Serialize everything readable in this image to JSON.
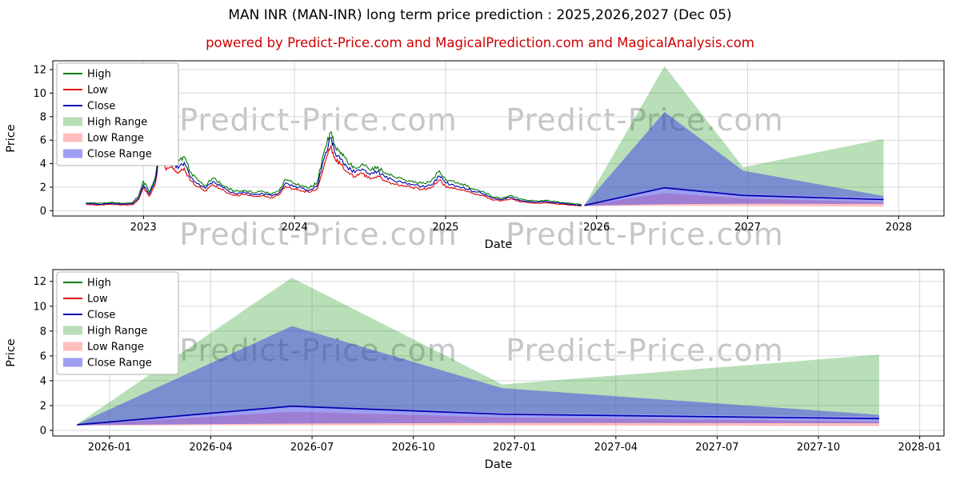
{
  "title": "MAN INR (MAN-INR) long term price prediction : 2025,2026,2027 (Dec 05)",
  "subtitle": "powered by Predict-Price.com and MagicalPrediction.com and MagicalAnalysis.com",
  "watermark": "Predict-Price.com",
  "colors": {
    "high_line": "#007a00",
    "low_line": "#e00000",
    "close_line": "#0000b0",
    "high_range_fill": "rgba(0,140,0,0.28)",
    "low_range_fill": "rgba(255,70,70,0.35)",
    "close_range_fill": "rgba(62,62,230,0.5)",
    "subtitle_color": "#cc0000",
    "grid": "#d8d8d8"
  },
  "chart_data": [
    {
      "type": "line",
      "name": "overview-history-and-prediction",
      "xlabel": "Date",
      "ylabel": "Price",
      "xlim": [
        2022.4,
        2028.3
      ],
      "ylim": [
        -0.45,
        12.75
      ],
      "grid": true,
      "legend_position": "upper-left",
      "xticks": [
        {
          "v": 2023,
          "label": "2023"
        },
        {
          "v": 2024,
          "label": "2024"
        },
        {
          "v": 2025,
          "label": "2025"
        },
        {
          "v": 2026,
          "label": "2026"
        },
        {
          "v": 2027,
          "label": "2027"
        },
        {
          "v": 2028,
          "label": "2028"
        }
      ],
      "yticks": [
        {
          "v": 0,
          "label": "0"
        },
        {
          "v": 2,
          "label": "2"
        },
        {
          "v": 4,
          "label": "4"
        },
        {
          "v": 6,
          "label": "6"
        },
        {
          "v": 8,
          "label": "8"
        },
        {
          "v": 10,
          "label": "10"
        },
        {
          "v": 12,
          "label": "12"
        }
      ],
      "bands": [
        {
          "name": "high-range-band",
          "label": "High Range",
          "color": "rgba(0,140,0,0.28)",
          "x": [
            2025.92,
            2026.45,
            2026.97,
            2027.9
          ],
          "top": [
            0.5,
            12.3,
            3.7,
            6.1
          ],
          "bottom": [
            0.45,
            2.0,
            1.4,
            1.1
          ]
        },
        {
          "name": "low-range-band",
          "label": "Low Range",
          "color": "rgba(255,70,70,0.35)",
          "x": [
            2025.92,
            2026.45,
            2026.97,
            2027.9
          ],
          "top": [
            0.45,
            1.5,
            1.05,
            0.72
          ],
          "bottom": [
            0.4,
            0.42,
            0.4,
            0.35
          ]
        },
        {
          "name": "close-range-band",
          "label": "Close Range",
          "color": "rgba(62,62,230,0.5)",
          "x": [
            2025.92,
            2026.45,
            2026.97,
            2027.9
          ],
          "top": [
            0.5,
            8.4,
            3.4,
            1.25
          ],
          "bottom": [
            0.42,
            0.55,
            0.6,
            0.58
          ]
        }
      ],
      "lines": [
        {
          "name": "high-line",
          "label": "High",
          "color": "#007a00",
          "w": 1.1,
          "jitter": 0.045,
          "seed": 1,
          "x": [
            2022.62,
            2022.7,
            2022.78,
            2022.86,
            2022.93,
            2022.97,
            2023.0,
            2023.04,
            2023.08,
            2023.11,
            2023.15,
            2023.19,
            2023.23,
            2023.27,
            2023.31,
            2023.36,
            2023.41,
            2023.46,
            2023.51,
            2023.56,
            2023.61,
            2023.67,
            2023.73,
            2023.79,
            2023.85,
            2023.9,
            2023.94,
            2024.0,
            2024.05,
            2024.1,
            2024.15,
            2024.2,
            2024.24,
            2024.27,
            2024.31,
            2024.35,
            2024.4,
            2024.45,
            2024.5,
            2024.55,
            2024.6,
            2024.66,
            2024.72,
            2024.78,
            2024.84,
            2024.9,
            2024.96,
            2025.0,
            2025.04,
            2025.09,
            2025.14,
            2025.19,
            2025.25,
            2025.31,
            2025.37,
            2025.43,
            2025.49,
            2025.55,
            2025.61,
            2025.67,
            2025.73,
            2025.79,
            2025.85,
            2025.9
          ],
          "y": [
            0.68,
            0.62,
            0.7,
            0.62,
            0.68,
            1.35,
            2.5,
            1.6,
            2.95,
            6.1,
            4.4,
            4.8,
            4.05,
            4.6,
            3.3,
            2.6,
            2.15,
            2.8,
            2.35,
            1.92,
            1.64,
            1.75,
            1.53,
            1.64,
            1.41,
            1.75,
            2.65,
            2.32,
            2.15,
            1.98,
            2.4,
            5.2,
            6.7,
            5.5,
            4.95,
            4.15,
            3.65,
            4.0,
            3.45,
            3.75,
            3.2,
            2.88,
            2.65,
            2.54,
            2.32,
            2.43,
            3.4,
            2.65,
            2.54,
            2.32,
            2.09,
            1.86,
            1.64,
            1.19,
            1.07,
            1.3,
            0.99,
            0.88,
            0.81,
            0.88,
            0.75,
            0.68,
            0.59,
            0.51
          ]
        },
        {
          "name": "low-line",
          "label": "Low",
          "color": "#e00000",
          "w": 1.1,
          "jitter": 0.045,
          "seed": 2,
          "x": [
            2022.62,
            2022.7,
            2022.78,
            2022.86,
            2022.93,
            2022.97,
            2023.0,
            2023.04,
            2023.08,
            2023.11,
            2023.15,
            2023.19,
            2023.23,
            2023.27,
            2023.31,
            2023.36,
            2023.41,
            2023.46,
            2023.51,
            2023.56,
            2023.61,
            2023.67,
            2023.73,
            2023.79,
            2023.85,
            2023.9,
            2023.94,
            2024.0,
            2024.05,
            2024.1,
            2024.15,
            2024.2,
            2024.24,
            2024.27,
            2024.31,
            2024.35,
            2024.4,
            2024.45,
            2024.5,
            2024.55,
            2024.6,
            2024.66,
            2024.72,
            2024.78,
            2024.84,
            2024.9,
            2024.96,
            2025.0,
            2025.04,
            2025.09,
            2025.14,
            2025.19,
            2025.25,
            2025.31,
            2025.37,
            2025.43,
            2025.49,
            2025.55,
            2025.61,
            2025.67,
            2025.73,
            2025.79,
            2025.85,
            2025.9
          ],
          "y": [
            0.53,
            0.49,
            0.55,
            0.49,
            0.53,
            0.97,
            1.95,
            1.24,
            2.3,
            4.95,
            3.45,
            3.8,
            3.18,
            3.63,
            2.57,
            2.04,
            1.68,
            2.21,
            1.86,
            1.5,
            1.28,
            1.37,
            1.2,
            1.28,
            1.11,
            1.37,
            2.08,
            1.82,
            1.68,
            1.55,
            1.86,
            4.05,
            5.5,
            4.34,
            3.9,
            3.28,
            2.88,
            3.14,
            2.7,
            2.97,
            2.52,
            2.26,
            2.08,
            1.99,
            1.82,
            1.9,
            2.61,
            2.08,
            1.99,
            1.82,
            1.64,
            1.46,
            1.28,
            0.93,
            0.84,
            1.02,
            0.78,
            0.69,
            0.64,
            0.69,
            0.58,
            0.53,
            0.46,
            0.4
          ]
        },
        {
          "name": "close-line",
          "label": "Close",
          "color": "#0000b0",
          "w": 1.1,
          "jitter": 0.045,
          "seed": 3,
          "x": [
            2022.62,
            2022.7,
            2022.78,
            2022.86,
            2022.93,
            2022.97,
            2023.0,
            2023.04,
            2023.08,
            2023.11,
            2023.15,
            2023.19,
            2023.23,
            2023.27,
            2023.31,
            2023.36,
            2023.41,
            2023.46,
            2023.51,
            2023.56,
            2023.61,
            2023.67,
            2023.73,
            2023.79,
            2023.85,
            2023.9,
            2023.94,
            2024.0,
            2024.05,
            2024.1,
            2024.15,
            2024.2,
            2024.24,
            2024.27,
            2024.31,
            2024.35,
            2024.4,
            2024.45,
            2024.5,
            2024.55,
            2024.6,
            2024.66,
            2024.72,
            2024.78,
            2024.84,
            2024.9,
            2024.96,
            2025.0,
            2025.04,
            2025.09,
            2025.14,
            2025.19,
            2025.25,
            2025.31,
            2025.37,
            2025.43,
            2025.49,
            2025.55,
            2025.61,
            2025.67,
            2025.73,
            2025.79,
            2025.85,
            2025.9
          ],
          "y": [
            0.6,
            0.55,
            0.62,
            0.55,
            0.6,
            1.1,
            2.2,
            1.4,
            2.6,
            5.6,
            3.9,
            4.3,
            3.6,
            4.1,
            2.9,
            2.3,
            1.9,
            2.5,
            2.1,
            1.7,
            1.45,
            1.55,
            1.35,
            1.45,
            1.25,
            1.55,
            2.35,
            2.05,
            1.9,
            1.75,
            2.1,
            4.6,
            6.2,
            4.9,
            4.4,
            3.7,
            3.25,
            3.55,
            3.05,
            3.35,
            2.85,
            2.55,
            2.35,
            2.25,
            2.05,
            2.15,
            2.95,
            2.35,
            2.25,
            2.05,
            1.85,
            1.65,
            1.45,
            1.05,
            0.95,
            1.15,
            0.88,
            0.78,
            0.72,
            0.78,
            0.66,
            0.6,
            0.52,
            0.45
          ]
        },
        {
          "name": "close-prediction-line",
          "label": "Close",
          "color": "#0000b0",
          "w": 1.7,
          "jitter": 0,
          "seed": 0,
          "x": [
            2025.92,
            2026.45,
            2026.97,
            2027.9
          ],
          "y": [
            0.45,
            1.95,
            1.3,
            0.95
          ]
        }
      ],
      "legend": [
        {
          "label": "High",
          "type": "line",
          "color": "#007a00"
        },
        {
          "label": "Low",
          "type": "line",
          "color": "#e00000"
        },
        {
          "label": "Close",
          "type": "line",
          "color": "#0000b0"
        },
        {
          "label": "High Range",
          "type": "patch",
          "color": "rgba(0,140,0,0.28)"
        },
        {
          "label": "Low Range",
          "type": "patch",
          "color": "rgba(255,70,70,0.35)"
        },
        {
          "label": "Close Range",
          "type": "patch",
          "color": "rgba(62,62,230,0.5)"
        }
      ]
    },
    {
      "type": "line",
      "name": "prediction-detail",
      "xlabel": "Date",
      "ylabel": "Price",
      "xlim": [
        2025.86,
        2028.06
      ],
      "ylim": [
        -0.45,
        12.95
      ],
      "grid": true,
      "legend_position": "upper-left",
      "xticks": [
        {
          "v": 2026.0,
          "label": "2026-01"
        },
        {
          "v": 2026.25,
          "label": "2026-04"
        },
        {
          "v": 2026.5,
          "label": "2026-07"
        },
        {
          "v": 2026.75,
          "label": "2026-10"
        },
        {
          "v": 2027.0,
          "label": "2027-01"
        },
        {
          "v": 2027.25,
          "label": "2027-04"
        },
        {
          "v": 2027.5,
          "label": "2027-07"
        },
        {
          "v": 2027.75,
          "label": "2027-10"
        },
        {
          "v": 2028.0,
          "label": "2028-01"
        }
      ],
      "yticks": [
        {
          "v": 0,
          "label": "0"
        },
        {
          "v": 2,
          "label": "2"
        },
        {
          "v": 4,
          "label": "4"
        },
        {
          "v": 6,
          "label": "6"
        },
        {
          "v": 8,
          "label": "8"
        },
        {
          "v": 10,
          "label": "10"
        },
        {
          "v": 12,
          "label": "12"
        }
      ],
      "bands": [
        {
          "name": "high-range-band",
          "label": "High Range",
          "color": "rgba(0,140,0,0.28)",
          "x": [
            2025.92,
            2026.45,
            2026.97,
            2027.9
          ],
          "top": [
            0.5,
            12.3,
            3.7,
            6.1
          ],
          "bottom": [
            0.45,
            2.0,
            1.4,
            1.1
          ]
        },
        {
          "name": "low-range-band",
          "label": "Low Range",
          "color": "rgba(255,70,70,0.35)",
          "x": [
            2025.92,
            2026.45,
            2026.97,
            2027.9
          ],
          "top": [
            0.45,
            1.5,
            1.05,
            0.72
          ],
          "bottom": [
            0.4,
            0.42,
            0.4,
            0.35
          ]
        },
        {
          "name": "close-range-band",
          "label": "Close Range",
          "color": "rgba(62,62,230,0.5)",
          "x": [
            2025.92,
            2026.45,
            2026.97,
            2027.9
          ],
          "top": [
            0.5,
            8.4,
            3.4,
            1.25
          ],
          "bottom": [
            0.42,
            0.55,
            0.6,
            0.58
          ]
        }
      ],
      "lines": [
        {
          "name": "close-prediction-line",
          "label": "Close",
          "color": "#0000b0",
          "w": 1.7,
          "jitter": 0,
          "seed": 0,
          "x": [
            2025.92,
            2026.45,
            2026.97,
            2027.9
          ],
          "y": [
            0.45,
            1.95,
            1.3,
            0.95
          ]
        }
      ],
      "legend": [
        {
          "label": "High",
          "type": "line",
          "color": "#007a00"
        },
        {
          "label": "Low",
          "type": "line",
          "color": "#e00000"
        },
        {
          "label": "Close",
          "type": "line",
          "color": "#0000b0"
        },
        {
          "label": "High Range",
          "type": "patch",
          "color": "rgba(0,140,0,0.28)"
        },
        {
          "label": "Low Range",
          "type": "patch",
          "color": "rgba(255,70,70,0.35)"
        },
        {
          "label": "Close Range",
          "type": "patch",
          "color": "rgba(62,62,230,0.5)"
        }
      ]
    }
  ]
}
